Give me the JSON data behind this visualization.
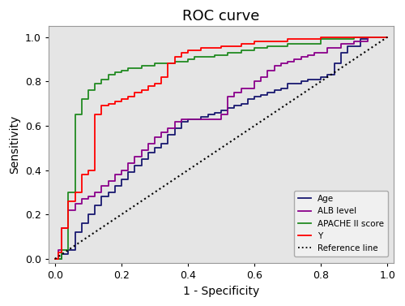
{
  "title": "ROC curve",
  "xlabel": "1 - Specificity",
  "ylabel": "Sensitivity",
  "xlim": [
    -0.02,
    1.02
  ],
  "ylim": [
    -0.02,
    1.05
  ],
  "background_color": "#e5e5e5",
  "fig_color": "#ffffff",
  "title_fontsize": 13,
  "axis_fontsize": 10,
  "tick_fontsize": 9,
  "age_x": [
    0.0,
    0.02,
    0.04,
    0.06,
    0.06,
    0.08,
    0.1,
    0.12,
    0.14,
    0.16,
    0.18,
    0.2,
    0.22,
    0.24,
    0.26,
    0.28,
    0.3,
    0.32,
    0.34,
    0.36,
    0.38,
    0.4,
    0.42,
    0.44,
    0.46,
    0.48,
    0.5,
    0.52,
    0.54,
    0.56,
    0.58,
    0.6,
    0.62,
    0.64,
    0.66,
    0.68,
    0.7,
    0.72,
    0.74,
    0.76,
    0.78,
    0.8,
    0.82,
    0.84,
    0.86,
    0.88,
    0.92,
    0.94,
    0.96,
    1.0
  ],
  "age_y": [
    0.0,
    0.02,
    0.04,
    0.08,
    0.12,
    0.16,
    0.2,
    0.24,
    0.28,
    0.3,
    0.33,
    0.36,
    0.39,
    0.42,
    0.45,
    0.48,
    0.5,
    0.52,
    0.56,
    0.59,
    0.62,
    0.63,
    0.63,
    0.64,
    0.65,
    0.66,
    0.67,
    0.68,
    0.69,
    0.7,
    0.72,
    0.73,
    0.74,
    0.75,
    0.76,
    0.77,
    0.79,
    0.79,
    0.8,
    0.81,
    0.81,
    0.82,
    0.83,
    0.88,
    0.93,
    0.96,
    0.99,
    1.0,
    1.0,
    1.0
  ],
  "alb_x": [
    0.0,
    0.01,
    0.02,
    0.02,
    0.04,
    0.04,
    0.06,
    0.08,
    0.1,
    0.12,
    0.14,
    0.16,
    0.18,
    0.2,
    0.22,
    0.24,
    0.26,
    0.28,
    0.3,
    0.32,
    0.34,
    0.36,
    0.36,
    0.38,
    0.4,
    0.5,
    0.52,
    0.54,
    0.56,
    0.6,
    0.62,
    0.64,
    0.66,
    0.68,
    0.7,
    0.72,
    0.74,
    0.76,
    0.78,
    0.82,
    0.86,
    0.9,
    0.94,
    1.0
  ],
  "alb_y": [
    0.0,
    0.04,
    0.08,
    0.14,
    0.16,
    0.22,
    0.25,
    0.27,
    0.28,
    0.3,
    0.33,
    0.35,
    0.38,
    0.4,
    0.43,
    0.46,
    0.49,
    0.52,
    0.55,
    0.57,
    0.59,
    0.59,
    0.62,
    0.63,
    0.63,
    0.65,
    0.73,
    0.75,
    0.77,
    0.8,
    0.82,
    0.85,
    0.87,
    0.88,
    0.89,
    0.9,
    0.91,
    0.92,
    0.93,
    0.95,
    0.97,
    0.98,
    1.0,
    1.0
  ],
  "apache_x": [
    0.0,
    0.02,
    0.04,
    0.04,
    0.06,
    0.06,
    0.08,
    0.1,
    0.12,
    0.14,
    0.16,
    0.18,
    0.2,
    0.22,
    0.24,
    0.26,
    0.28,
    0.3,
    0.32,
    0.34,
    0.36,
    0.38,
    0.4,
    0.42,
    0.44,
    0.46,
    0.48,
    0.5,
    0.52,
    0.54,
    0.56,
    0.6,
    0.64,
    0.7,
    0.8,
    0.9,
    1.0
  ],
  "apache_y": [
    0.0,
    0.04,
    0.08,
    0.3,
    0.35,
    0.65,
    0.72,
    0.76,
    0.79,
    0.81,
    0.83,
    0.84,
    0.85,
    0.86,
    0.86,
    0.87,
    0.87,
    0.88,
    0.88,
    0.88,
    0.89,
    0.89,
    0.9,
    0.91,
    0.91,
    0.91,
    0.92,
    0.92,
    0.93,
    0.93,
    0.94,
    0.95,
    0.96,
    0.97,
    0.99,
    1.0,
    1.0
  ],
  "y_x": [
    0.0,
    0.01,
    0.02,
    0.02,
    0.04,
    0.04,
    0.06,
    0.06,
    0.08,
    0.08,
    0.1,
    0.12,
    0.14,
    0.16,
    0.18,
    0.2,
    0.22,
    0.24,
    0.26,
    0.28,
    0.3,
    0.32,
    0.34,
    0.36,
    0.38,
    0.4,
    0.42,
    0.44,
    0.46,
    0.48,
    0.5,
    0.52,
    0.54,
    0.56,
    0.6,
    0.65,
    0.7,
    0.8,
    0.9,
    1.0
  ],
  "y_y": [
    0.0,
    0.03,
    0.08,
    0.14,
    0.16,
    0.26,
    0.27,
    0.3,
    0.3,
    0.38,
    0.4,
    0.65,
    0.69,
    0.7,
    0.71,
    0.72,
    0.73,
    0.75,
    0.76,
    0.78,
    0.79,
    0.82,
    0.88,
    0.91,
    0.93,
    0.94,
    0.94,
    0.95,
    0.95,
    0.95,
    0.96,
    0.96,
    0.96,
    0.97,
    0.98,
    0.98,
    0.99,
    1.0,
    1.0,
    1.0
  ],
  "age_color": "#191970",
  "alb_color": "#8B008B",
  "apache_color": "#228B22",
  "y_color": "#FF0000",
  "ref_color": "#000000",
  "legend_labels": [
    "Age",
    "ALB level",
    "APACHE II score",
    "Y",
    "Reference line"
  ],
  "legend_colors": [
    "#191970",
    "#8B008B",
    "#228B22",
    "#FF0000",
    "#000000"
  ],
  "ticks": [
    0.0,
    0.2,
    0.4,
    0.6,
    0.8,
    1.0
  ]
}
